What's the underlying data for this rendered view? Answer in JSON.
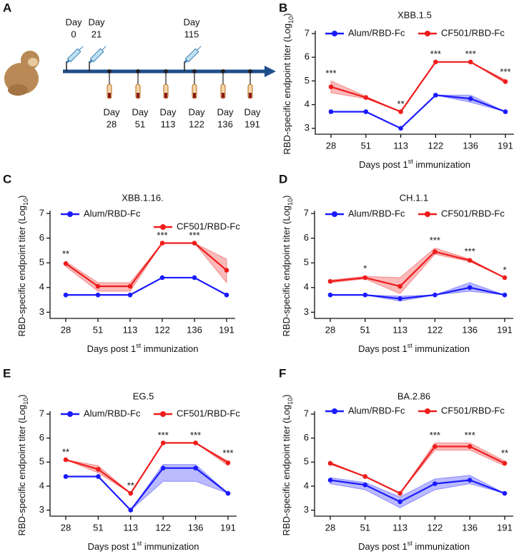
{
  "timeline": {
    "label": "A",
    "immunizations": [
      [
        "Day",
        "0"
      ],
      [
        "Day",
        "21"
      ],
      [
        "Day",
        "115"
      ]
    ],
    "bleeds": [
      [
        "Day",
        "28"
      ],
      [
        "Day",
        "51"
      ],
      [
        "Day",
        "113"
      ],
      [
        "Day",
        "122"
      ],
      [
        "Day",
        "136"
      ],
      [
        "Day",
        "191"
      ]
    ]
  },
  "chart_data": [
    {
      "type": "line",
      "panel": "B",
      "title": "XBB.1.5",
      "categories": [
        "28",
        "51",
        "113",
        "122",
        "136",
        "191"
      ],
      "ylabel": [
        "RBD-specific endpoint titer (Log",
        "10",
        ")"
      ],
      "xlabel": [
        "Days post 1",
        "st",
        " immunization"
      ],
      "ylim": [
        2.75,
        7
      ],
      "yticks": [
        3,
        4,
        5,
        6,
        7
      ],
      "series": [
        {
          "name": "Alum/RBD-Fc",
          "color": "#1a1aff",
          "values": [
            3.7,
            3.7,
            3.0,
            4.4,
            4.25,
            3.7
          ],
          "band_lower": [
            3.7,
            3.7,
            3.0,
            4.4,
            4.1,
            3.7
          ],
          "band_upper": [
            3.7,
            3.7,
            3.0,
            4.4,
            4.4,
            3.7
          ]
        },
        {
          "name": "CF501/RBD-Fc",
          "color": "#ee1c1c",
          "values": [
            4.75,
            4.3,
            3.7,
            5.8,
            5.8,
            4.97
          ],
          "band_lower": [
            4.5,
            4.25,
            3.7,
            5.8,
            5.8,
            4.9
          ],
          "band_upper": [
            5.0,
            4.35,
            3.7,
            5.8,
            5.8,
            5.05
          ]
        }
      ],
      "annotations": [
        "***",
        null,
        "**",
        "***",
        "***",
        "***"
      ]
    },
    {
      "type": "line",
      "panel": "C",
      "title": "XBB.1.16.",
      "categories": [
        "28",
        "51",
        "113",
        "122",
        "136",
        "191"
      ],
      "ylabel": [
        "RBD-specific endpoint titer (Log",
        "10",
        ")"
      ],
      "xlabel": [
        "Days post 1",
        "st",
        " immunization"
      ],
      "ylim": [
        2.75,
        7
      ],
      "yticks": [
        3,
        4,
        5,
        6,
        7
      ],
      "series": [
        {
          "name": "Alum/RBD-Fc",
          "color": "#1a1aff",
          "values": [
            3.7,
            3.7,
            3.7,
            4.4,
            4.4,
            3.7
          ],
          "band_lower": [
            3.7,
            3.7,
            3.7,
            4.4,
            4.4,
            3.7
          ],
          "band_upper": [
            3.7,
            3.7,
            3.7,
            4.4,
            4.4,
            3.7
          ]
        },
        {
          "name": "CF501/RBD-Fc",
          "color": "#ee1c1c",
          "values": [
            4.97,
            4.05,
            4.05,
            5.8,
            5.8,
            4.7
          ],
          "band_lower": [
            4.85,
            3.85,
            3.85,
            5.8,
            5.8,
            4.2
          ],
          "band_upper": [
            5.05,
            4.2,
            4.2,
            5.8,
            5.8,
            5.15
          ]
        }
      ],
      "annotations": [
        "**",
        null,
        null,
        "***",
        "***",
        null
      ]
    },
    {
      "type": "line",
      "panel": "D",
      "title": "CH.1.1",
      "categories": [
        "28",
        "51",
        "113",
        "122",
        "136",
        "191"
      ],
      "ylabel": [
        "RBD-specific endpoint titer (Log",
        "10",
        ")"
      ],
      "xlabel": [
        "Days post 1",
        "st",
        " immunization"
      ],
      "ylim": [
        2.75,
        7
      ],
      "yticks": [
        3,
        4,
        5,
        6,
        7
      ],
      "series": [
        {
          "name": "Alum/RBD-Fc",
          "color": "#1a1aff",
          "values": [
            3.7,
            3.7,
            3.55,
            3.7,
            4.0,
            3.7
          ],
          "band_lower": [
            3.7,
            3.7,
            3.45,
            3.7,
            3.85,
            3.7
          ],
          "band_upper": [
            3.7,
            3.7,
            3.65,
            3.7,
            4.2,
            3.7
          ]
        },
        {
          "name": "CF501/RBD-Fc",
          "color": "#ee1c1c",
          "values": [
            4.25,
            4.4,
            4.05,
            5.45,
            5.1,
            4.4
          ],
          "band_lower": [
            4.2,
            4.35,
            3.75,
            5.35,
            5.05,
            4.4
          ],
          "band_upper": [
            4.3,
            4.45,
            4.4,
            5.6,
            5.15,
            4.4
          ]
        }
      ],
      "annotations": [
        null,
        "*",
        null,
        "***",
        "***",
        "*"
      ]
    },
    {
      "type": "line",
      "panel": "E",
      "title": "EG.5",
      "categories": [
        "28",
        "51",
        "113",
        "122",
        "136",
        "191"
      ],
      "ylabel": [
        "RBD-specific endpoint titer (Log",
        "10",
        ")"
      ],
      "xlabel": [
        "Days post 1",
        "st",
        " immunization"
      ],
      "ylim": [
        2.75,
        7
      ],
      "yticks": [
        3,
        4,
        5,
        6,
        7
      ],
      "series": [
        {
          "name": "Alum/RBD-Fc",
          "color": "#1a1aff",
          "values": [
            4.4,
            4.4,
            3.0,
            4.75,
            4.75,
            3.7
          ],
          "band_lower": [
            4.4,
            4.4,
            3.0,
            4.2,
            4.2,
            3.7
          ],
          "band_upper": [
            4.4,
            4.4,
            3.0,
            4.9,
            4.9,
            3.7
          ]
        },
        {
          "name": "CF501/RBD-Fc",
          "color": "#ee1c1c",
          "values": [
            5.1,
            4.7,
            3.7,
            5.8,
            5.8,
            4.97
          ],
          "band_lower": [
            5.1,
            4.55,
            3.7,
            5.8,
            5.8,
            4.85
          ],
          "band_upper": [
            5.1,
            4.85,
            3.7,
            5.8,
            5.8,
            5.05
          ]
        }
      ],
      "annotations": [
        "**",
        null,
        "**",
        "***",
        "***",
        "***"
      ]
    },
    {
      "type": "line",
      "panel": "F",
      "title": "BA.2.86",
      "categories": [
        "28",
        "51",
        "113",
        "122",
        "136",
        "191"
      ],
      "ylabel": [
        "RBD-specific endpoint titer (Log",
        "10",
        ")"
      ],
      "xlabel": [
        "Days post 1",
        "st",
        " immunization"
      ],
      "ylim": [
        2.75,
        7
      ],
      "yticks": [
        3,
        4,
        5,
        6,
        7
      ],
      "series": [
        {
          "name": "Alum/RBD-Fc",
          "color": "#1a1aff",
          "values": [
            4.25,
            4.05,
            3.35,
            4.1,
            4.25,
            3.7
          ],
          "band_lower": [
            4.1,
            3.85,
            3.1,
            3.85,
            4.1,
            3.7
          ],
          "band_upper": [
            4.35,
            4.15,
            3.55,
            4.3,
            4.45,
            3.7
          ]
        },
        {
          "name": "CF501/RBD-Fc",
          "color": "#ee1c1c",
          "values": [
            4.95,
            4.4,
            3.7,
            5.65,
            5.65,
            4.95
          ],
          "band_lower": [
            4.9,
            4.4,
            3.7,
            5.5,
            5.5,
            4.85
          ],
          "band_upper": [
            5.0,
            4.4,
            3.7,
            5.8,
            5.8,
            5.05
          ]
        }
      ],
      "annotations": [
        null,
        null,
        null,
        "***",
        "***",
        "**"
      ]
    }
  ]
}
